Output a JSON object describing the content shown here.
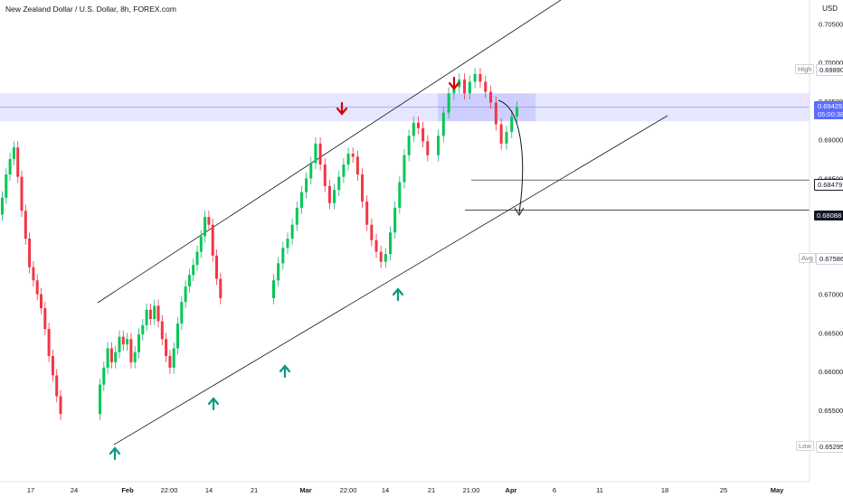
{
  "header": {
    "title": "New Zealand Dollar / U.S. Dollar, 8h, FOREX.com",
    "currency": "USD"
  },
  "price_labels": {
    "high_tag": "High",
    "high_value": "0.69890",
    "current_value": "0.69425",
    "countdown": "05:00:38",
    "level1_value": "0.68479",
    "level2_value": "0.68088",
    "avg_tag": "Avg",
    "avg_value": "0.67586",
    "low_tag": "Low",
    "low_value": "0.65295"
  },
  "colors": {
    "up": "#22ab94",
    "down": "#f23645",
    "bull_arrow": "#089981",
    "bear_arrow": "#d50000",
    "zone": "#8c8cff",
    "current_label": "#2962ff"
  },
  "chart_data": {
    "type": "candlestick",
    "title": "New Zealand Dollar / U.S. Dollar, 8h, FOREX.com",
    "y_range": [
      0.6475,
      0.7075
    ],
    "y_ticks": [
      "0.70500",
      "0.70000",
      "0.69500",
      "0.69000",
      "0.68500",
      "0.68000",
      "0.67500",
      "0.67000",
      "0.66500",
      "0.66000",
      "0.65500",
      "0.65000"
    ],
    "x_ticks": [
      "17",
      "24",
      "Feb",
      "22:00",
      "14",
      "21",
      "Mar",
      "22:00",
      "14",
      "21",
      "21:00",
      "Apr",
      "6",
      "11",
      "18",
      "25",
      "May"
    ],
    "series": [
      {
        "name": "segment 1",
        "values": [
          [
            0.6803,
            0.6825
          ],
          [
            0.6825,
            0.6855
          ],
          [
            0.6855,
            0.6875
          ],
          [
            0.6875,
            0.689
          ],
          [
            0.689,
            0.6852
          ],
          [
            0.6852,
            0.6808
          ],
          [
            0.6808,
            0.6772
          ],
          [
            0.6772,
            0.6735
          ],
          [
            0.6735,
            0.6718
          ],
          [
            0.6718,
            0.67
          ],
          [
            0.67,
            0.6682
          ],
          [
            0.6682,
            0.6655
          ],
          [
            0.6655,
            0.662
          ],
          [
            0.662,
            0.6595
          ],
          [
            0.6595,
            0.6568
          ],
          [
            0.6568,
            0.6545
          ]
        ]
      },
      {
        "name": "segment 2",
        "values": [
          [
            0.6545,
            0.6583
          ],
          [
            0.6583,
            0.6605
          ],
          [
            0.6605,
            0.663
          ],
          [
            0.663,
            0.6612
          ],
          [
            0.6612,
            0.6625
          ],
          [
            0.6625,
            0.6645
          ],
          [
            0.6645,
            0.6635
          ],
          [
            0.6635,
            0.6642
          ],
          [
            0.6642,
            0.6612
          ],
          [
            0.6612,
            0.6625
          ],
          [
            0.6625,
            0.6648
          ],
          [
            0.6648,
            0.666
          ],
          [
            0.666,
            0.668
          ],
          [
            0.668,
            0.6668
          ],
          [
            0.6668,
            0.6685
          ],
          [
            0.6685,
            0.6665
          ],
          [
            0.6665,
            0.6642
          ],
          [
            0.6642,
            0.662
          ],
          [
            0.662,
            0.6605
          ],
          [
            0.6605,
            0.663
          ],
          [
            0.663,
            0.6662
          ],
          [
            0.6662,
            0.669
          ],
          [
            0.669,
            0.671
          ],
          [
            0.671,
            0.6725
          ],
          [
            0.6725,
            0.6738
          ],
          [
            0.6738,
            0.6755
          ],
          [
            0.6755,
            0.6775
          ],
          [
            0.6775,
            0.68
          ],
          [
            0.68,
            0.679
          ],
          [
            0.679,
            0.675
          ],
          [
            0.675,
            0.672
          ],
          [
            0.672,
            0.6695
          ]
        ]
      },
      {
        "name": "segment 3",
        "values": [
          [
            0.6695,
            0.6718
          ],
          [
            0.6718,
            0.674
          ],
          [
            0.674,
            0.676
          ],
          [
            0.676,
            0.6772
          ],
          [
            0.6772,
            0.679
          ],
          [
            0.679,
            0.6812
          ],
          [
            0.6812,
            0.6832
          ],
          [
            0.6832,
            0.685
          ],
          [
            0.685,
            0.687
          ],
          [
            0.687,
            0.6895
          ],
          [
            0.6895,
            0.6868
          ],
          [
            0.6868,
            0.684
          ],
          [
            0.684,
            0.6818
          ],
          [
            0.6818,
            0.6835
          ],
          [
            0.6835,
            0.6852
          ],
          [
            0.6852,
            0.6868
          ],
          [
            0.6868,
            0.6882
          ],
          [
            0.6882,
            0.6878
          ],
          [
            0.6878,
            0.6855
          ],
          [
            0.6855,
            0.682
          ],
          [
            0.682,
            0.679
          ],
          [
            0.679,
            0.677
          ],
          [
            0.677,
            0.6755
          ],
          [
            0.6755,
            0.6742
          ],
          [
            0.6742,
            0.6752
          ],
          [
            0.6752,
            0.678
          ],
          [
            0.678,
            0.6812
          ],
          [
            0.6812,
            0.6845
          ],
          [
            0.6845,
            0.688
          ],
          [
            0.688,
            0.6905
          ],
          [
            0.6905,
            0.6922
          ],
          [
            0.6922,
            0.6915
          ],
          [
            0.6915,
            0.6898
          ],
          [
            0.6898,
            0.688
          ]
        ]
      },
      {
        "name": "segment 4",
        "values": [
          [
            0.688,
            0.6905
          ],
          [
            0.6905,
            0.6935
          ],
          [
            0.6935,
            0.696
          ],
          [
            0.696,
            0.6968
          ],
          [
            0.6968,
            0.6978
          ],
          [
            0.6978,
            0.696
          ],
          [
            0.696,
            0.6975
          ],
          [
            0.6975,
            0.6985
          ],
          [
            0.6985,
            0.6975
          ],
          [
            0.6975,
            0.6962
          ],
          [
            0.6962,
            0.6948
          ],
          [
            0.6948,
            0.692
          ],
          [
            0.692,
            0.6895
          ],
          [
            0.6895,
            0.691
          ],
          [
            0.691,
            0.693
          ],
          [
            0.693,
            0.6942
          ]
        ]
      }
    ]
  }
}
